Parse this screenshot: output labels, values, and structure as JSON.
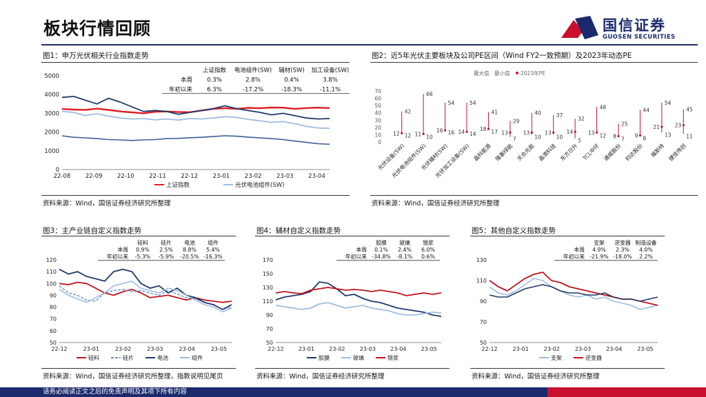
{
  "header": {
    "title": "板块行情回顾",
    "logo_cn": "国信证券",
    "logo_en": "GUOSEN SECURITIES"
  },
  "footer": {
    "disclaimer": "请务必阅读正文之后的免责声明及其项下所有内容"
  },
  "panels": {
    "p1": {
      "title": "图1：申万光伏相关行业指数走势",
      "source": "资料来源：Wind，国信证券经济研究所整理"
    },
    "p2": {
      "title": "图2：近5年光伏主要板块及公司PE区间（Wind FY2一致预期）及2023年动态PE",
      "source": "资料来源：Wind，国信证券经济研究所整理"
    },
    "p3": {
      "title": "图3：主产业链自定义指数走势",
      "source": "资料来源：Wind，国信证券经济研究所整理，指数说明见尾页"
    },
    "p4": {
      "title": "图4：辅材自定义指数走势",
      "source": "资料来源：Wind，国信证券经济研究所整理"
    },
    "p5": {
      "title": "图5：其他自定义指数走势",
      "source": "资料来源：Wind，国信证券经济研究所整理"
    }
  },
  "chart_data": [
    {
      "id": "p1",
      "type": "line",
      "x_ticks": [
        "22-08",
        "22-09",
        "22-10",
        "22-11",
        "22-12",
        "23-01",
        "23-02",
        "23-03",
        "23-04"
      ],
      "y_ticks": [
        0,
        1000,
        2000,
        3000,
        4000,
        5000
      ],
      "ylim": [
        0,
        5000
      ],
      "series": [
        {
          "name": "上证指数",
          "color": "#e01b24",
          "width": 2.4,
          "dash": "",
          "in_legend": true,
          "values": [
            3230,
            3200,
            3185,
            3250,
            3180,
            3100,
            3050,
            3000,
            3080,
            3100,
            3070,
            3060,
            3150,
            3240,
            3275,
            3240,
            3290,
            3270,
            3310,
            3300,
            3240,
            3280,
            3300,
            3280
          ]
        },
        {
          "name": "光伏电池组件(SW)",
          "color": "#9dbbe0",
          "width": 1.8,
          "dash": "",
          "in_legend": true,
          "values": [
            3100,
            3050,
            2880,
            2980,
            2850,
            2750,
            2700,
            2720,
            2650,
            2700,
            2640,
            2720,
            2700,
            2750,
            2820,
            2780,
            2680,
            2600,
            2520,
            2560,
            2450,
            2300,
            2220,
            2200
          ]
        },
        {
          "name": "",
          "color": "#1f3868",
          "width": 1.8,
          "dash": "",
          "in_legend": false,
          "values": [
            3850,
            3900,
            3700,
            3500,
            3800,
            3600,
            3350,
            3100,
            3150,
            3100,
            2950,
            3050,
            3150,
            3250,
            3400,
            3250,
            3150,
            3050,
            2920,
            3000,
            2880,
            2750,
            2700,
            2720
          ]
        },
        {
          "name": "",
          "color": "#3b5b95",
          "width": 1.6,
          "dash": "",
          "in_legend": false,
          "values": [
            1800,
            1720,
            1690,
            1650,
            1600,
            1580,
            1550,
            1580,
            1600,
            1650,
            1660,
            1700,
            1720,
            1760,
            1800,
            1780,
            1730,
            1690,
            1650,
            1600,
            1520,
            1450,
            1380,
            1350
          ]
        }
      ],
      "table": {
        "cols": [
          "上证指数",
          "电池组件(SW)",
          "辅材(SW)",
          "加工设备(SW)"
        ],
        "rows": [
          {
            "label": "本周",
            "values": [
              "0.3%",
              "2.8%",
              "0.4%",
              "3.8%"
            ]
          },
          {
            "label": "年初以来",
            "values": [
              "6.3%",
              "-17.2%",
              "-18.3%",
              "-11.1%"
            ]
          }
        ]
      }
    },
    {
      "id": "p2",
      "type": "range",
      "categories": [
        "光伏设备(SW)",
        "光伏电池组件(SW)",
        "光伏辅材(SW)",
        "光伏加工设备(SW)",
        "晶科能源",
        "隆基绿能",
        "天合光能",
        "晶澳科技",
        "东方日升",
        "TCL中环",
        "通威股份",
        "钧达股份",
        "福斯特",
        "捷佳伟创"
      ],
      "max": [
        42,
        66,
        54,
        54,
        41,
        29,
        40,
        37,
        32,
        48,
        25,
        44,
        54,
        45
      ],
      "min": [
        12,
        10,
        16,
        14,
        17,
        7,
        10,
        10,
        5,
        12,
        7,
        8,
        13,
        11
      ],
      "pe2023": [
        12,
        11,
        16,
        14,
        18,
        13,
        13,
        13,
        14,
        13,
        8,
        9,
        21,
        23
      ],
      "y_ticks": [
        0,
        10,
        20,
        30,
        40,
        50,
        60,
        70
      ],
      "ylim": [
        0,
        70
      ],
      "legend": [
        "最大值",
        "最小值",
        "2023年PE"
      ]
    },
    {
      "id": "p3",
      "type": "line",
      "x_ticks": [
        "22-12",
        "23-01",
        "23-02",
        "23-03",
        "23-04",
        "23-05"
      ],
      "y_ticks": [
        50,
        60,
        70,
        80,
        90,
        100,
        110,
        120
      ],
      "ylim": [
        50,
        120
      ],
      "series": [
        {
          "name": "硅料",
          "color": "#c0121f",
          "width": 1.8,
          "dash": "",
          "values": [
            100,
            99,
            101,
            100,
            96,
            92,
            90,
            93,
            95,
            92,
            88,
            89,
            90,
            88,
            86,
            88,
            86,
            85,
            84,
            85
          ]
        },
        {
          "name": "硅片",
          "color": "#6a8ccb",
          "width": 1.4,
          "dash": "4,2",
          "values": [
            98,
            92,
            90,
            86,
            85,
            92,
            94,
            95,
            93,
            94,
            92,
            90,
            94,
            91,
            88,
            87,
            84,
            82,
            78,
            80
          ]
        },
        {
          "name": "电池",
          "color": "#1f3868",
          "width": 1.8,
          "dash": "",
          "values": [
            112,
            108,
            110,
            106,
            104,
            102,
            110,
            112,
            110,
            100,
            96,
            98,
            92,
            96,
            90,
            88,
            84,
            82,
            78,
            82
          ]
        },
        {
          "name": "组件",
          "color": "#9dbbe0",
          "width": 1.6,
          "dash": "",
          "values": [
            95,
            90,
            87,
            84,
            88,
            92,
            98,
            100,
            102,
            96,
            94,
            92,
            96,
            94,
            90,
            86,
            82,
            80,
            76,
            79
          ]
        }
      ],
      "table": {
        "cols": [
          "硅料",
          "硅片",
          "电池",
          "组件"
        ],
        "rows": [
          {
            "label": "本周",
            "values": [
              "0.9%",
              "2.5%",
              "8.8%",
              "5.4%"
            ]
          },
          {
            "label": "年初以来",
            "values": [
              "-5.3%",
              "-5.9%",
              "-20.5%",
              "-16.3%"
            ]
          }
        ]
      }
    },
    {
      "id": "p4",
      "type": "line",
      "x_ticks": [
        "22-12",
        "23-01",
        "23-02",
        "23-03",
        "23-04",
        "23-05"
      ],
      "y_ticks": [
        50,
        70,
        90,
        110,
        130,
        150,
        170
      ],
      "ylim": [
        50,
        170
      ],
      "series": [
        {
          "name": "胶膜",
          "color": "#1f3868",
          "width": 1.8,
          "dash": "",
          "values": [
            112,
            116,
            118,
            120,
            124,
            138,
            136,
            128,
            118,
            120,
            114,
            110,
            108,
            104,
            100,
            98,
            96,
            94,
            90,
            88
          ]
        },
        {
          "name": "玻璃",
          "color": "#9dbbe0",
          "width": 1.8,
          "dash": "",
          "values": [
            104,
            102,
            100,
            98,
            100,
            106,
            108,
            104,
            100,
            102,
            104,
            100,
            98,
            96,
            92,
            90,
            90,
            92,
            94,
            93
          ]
        },
        {
          "name": "银浆",
          "color": "#c0121f",
          "width": 1.8,
          "dash": "",
          "values": [
            122,
            124,
            122,
            121,
            126,
            128,
            130,
            128,
            126,
            127,
            126,
            124,
            126,
            124,
            122,
            118,
            120,
            122,
            120,
            122
          ]
        }
      ],
      "table": {
        "cols": [
          "胶膜",
          "玻璃",
          "银浆"
        ],
        "rows": [
          {
            "label": "本周",
            "values": [
              "0.1%",
              "2.4%",
              "6.0%"
            ]
          },
          {
            "label": "年初以来",
            "values": [
              "-34.8%",
              "-8.1%",
              "0.6%"
            ]
          }
        ]
      }
    },
    {
      "id": "p5",
      "type": "line",
      "x_ticks": [
        "22-12",
        "23-01",
        "23-02",
        "23-03",
        "23-04",
        "23-05"
      ],
      "y_ticks": [
        50,
        70,
        90,
        110,
        130
      ],
      "ylim": [
        50,
        130
      ],
      "series": [
        {
          "name": "支架",
          "color": "#9dbbe0",
          "width": 1.6,
          "dash": "",
          "values": [
            104,
            98,
            96,
            100,
            106,
            112,
            110,
            104,
            100,
            96,
            94,
            96,
            92,
            94,
            90,
            88,
            86,
            82,
            84,
            86
          ]
        },
        {
          "name": "逆变器",
          "color": "#c0121f",
          "width": 1.8,
          "dash": "",
          "values": [
            110,
            104,
            100,
            106,
            112,
            116,
            118,
            110,
            108,
            104,
            102,
            100,
            98,
            96,
            94,
            92,
            92,
            90,
            88,
            86
          ]
        },
        {
          "name": "",
          "color": "#1f3868",
          "width": 1.6,
          "dash": "",
          "values": [
            96,
            94,
            94,
            98,
            102,
            104,
            106,
            104,
            100,
            98,
            98,
            96,
            96,
            98,
            94,
            92,
            92,
            90,
            92,
            94
          ]
        }
      ],
      "table": {
        "cols": [
          "支架",
          "逆变器",
          "制造设备"
        ],
        "rows": [
          {
            "label": "本周",
            "values": [
              "4.9%",
              "2.3%",
              "4.0%"
            ]
          },
          {
            "label": "年初以来",
            "values": [
              "-21.9%",
              "-18.0%",
              "2.2%"
            ]
          }
        ]
      }
    }
  ]
}
